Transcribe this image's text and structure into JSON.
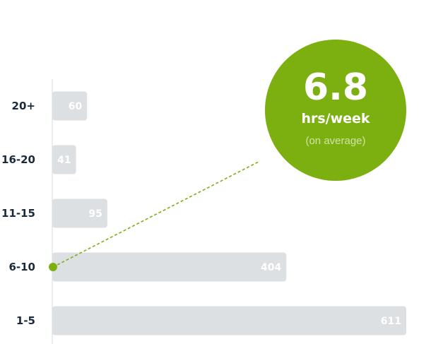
{
  "chart_data": {
    "type": "bar",
    "orientation": "horizontal",
    "categories": [
      "20+",
      "16-20",
      "11-15",
      "6-10",
      "1-5"
    ],
    "values": [
      60,
      41,
      95,
      404,
      611
    ],
    "xlim": [
      0,
      611
    ],
    "grid": false,
    "bar_color": "#dce0e3",
    "accent_color": "#7cb011",
    "callout": {
      "value": "6.8",
      "unit": "hrs/week",
      "note": "(on average)",
      "points_to_category": "6-10"
    }
  }
}
